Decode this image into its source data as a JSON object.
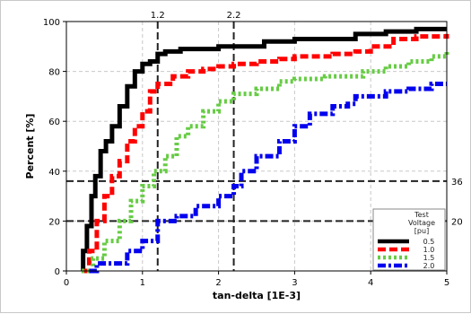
{
  "chart_data": {
    "type": "line",
    "title": "",
    "xlabel": "tan-delta [1E-3]",
    "ylabel": "Percent [%]",
    "xlim": [
      0,
      5
    ],
    "ylim": [
      0,
      100
    ],
    "x_ticks": [
      "0",
      "1",
      "2",
      "3",
      "4",
      "5"
    ],
    "y_ticks": [
      "0",
      "20",
      "40",
      "60",
      "80",
      "100"
    ],
    "grid": true,
    "legend": {
      "title_lines": [
        "Test",
        "Voltage",
        "[pu]"
      ],
      "placement": "bottom-right"
    },
    "reference_lines": {
      "vertical": [
        {
          "x": 1.2,
          "label": "1.2"
        },
        {
          "x": 2.2,
          "label": "2.2"
        }
      ],
      "horizontal": [
        {
          "y": 36,
          "label": "36"
        },
        {
          "y": 20,
          "label": "20"
        }
      ]
    },
    "series": [
      {
        "name": "0.5",
        "color": "#000000",
        "style": "solid",
        "points": [
          [
            0.2,
            0
          ],
          [
            0.22,
            8
          ],
          [
            0.27,
            18
          ],
          [
            0.33,
            30
          ],
          [
            0.38,
            38
          ],
          [
            0.45,
            48
          ],
          [
            0.52,
            52
          ],
          [
            0.6,
            58
          ],
          [
            0.7,
            66
          ],
          [
            0.8,
            74
          ],
          [
            0.9,
            80
          ],
          [
            1.0,
            83
          ],
          [
            1.1,
            84
          ],
          [
            1.2,
            87
          ],
          [
            1.3,
            88
          ],
          [
            1.5,
            89
          ],
          [
            1.8,
            89
          ],
          [
            2.0,
            90
          ],
          [
            2.3,
            90
          ],
          [
            2.6,
            92
          ],
          [
            3.0,
            93
          ],
          [
            3.5,
            93
          ],
          [
            3.8,
            95
          ],
          [
            4.2,
            96
          ],
          [
            4.6,
            97
          ],
          [
            5.0,
            97
          ]
        ]
      },
      {
        "name": "1.0",
        "color": "#ff0000",
        "style": "dash",
        "points": [
          [
            0.22,
            0
          ],
          [
            0.3,
            8
          ],
          [
            0.4,
            20
          ],
          [
            0.5,
            30
          ],
          [
            0.6,
            38
          ],
          [
            0.7,
            44
          ],
          [
            0.8,
            52
          ],
          [
            0.9,
            58
          ],
          [
            1.0,
            64
          ],
          [
            1.1,
            72
          ],
          [
            1.2,
            75
          ],
          [
            1.4,
            78
          ],
          [
            1.6,
            80
          ],
          [
            1.8,
            81
          ],
          [
            2.0,
            82
          ],
          [
            2.2,
            83
          ],
          [
            2.5,
            84
          ],
          [
            2.8,
            85
          ],
          [
            3.0,
            86
          ],
          [
            3.5,
            87
          ],
          [
            3.8,
            88
          ],
          [
            4.0,
            90
          ],
          [
            4.3,
            93
          ],
          [
            4.6,
            94
          ],
          [
            5.0,
            95
          ]
        ]
      },
      {
        "name": "1.5",
        "color": "#66cc44",
        "style": "dot",
        "points": [
          [
            0.2,
            0
          ],
          [
            0.35,
            5
          ],
          [
            0.5,
            12
          ],
          [
            0.7,
            20
          ],
          [
            0.85,
            28
          ],
          [
            1.0,
            34
          ],
          [
            1.15,
            40
          ],
          [
            1.3,
            46
          ],
          [
            1.45,
            54
          ],
          [
            1.6,
            58
          ],
          [
            1.8,
            64
          ],
          [
            2.0,
            68
          ],
          [
            2.2,
            71
          ],
          [
            2.5,
            73
          ],
          [
            2.8,
            76
          ],
          [
            3.0,
            77
          ],
          [
            3.4,
            78
          ],
          [
            3.7,
            78
          ],
          [
            3.9,
            80
          ],
          [
            4.2,
            82
          ],
          [
            4.5,
            84
          ],
          [
            4.8,
            86
          ],
          [
            5.0,
            88
          ]
        ]
      },
      {
        "name": "2.0",
        "color": "#0000ee",
        "style": "dashdot",
        "points": [
          [
            0.3,
            0
          ],
          [
            0.4,
            3
          ],
          [
            0.6,
            3
          ],
          [
            0.8,
            8
          ],
          [
            1.0,
            12
          ],
          [
            1.2,
            20
          ],
          [
            1.45,
            22
          ],
          [
            1.7,
            26
          ],
          [
            2.0,
            30
          ],
          [
            2.2,
            34
          ],
          [
            2.3,
            40
          ],
          [
            2.5,
            46
          ],
          [
            2.8,
            52
          ],
          [
            3.0,
            58
          ],
          [
            3.2,
            63
          ],
          [
            3.5,
            66
          ],
          [
            3.7,
            67
          ],
          [
            3.8,
            70
          ],
          [
            4.2,
            72
          ],
          [
            4.5,
            73
          ],
          [
            4.8,
            75
          ],
          [
            5.0,
            75
          ]
        ]
      }
    ]
  }
}
